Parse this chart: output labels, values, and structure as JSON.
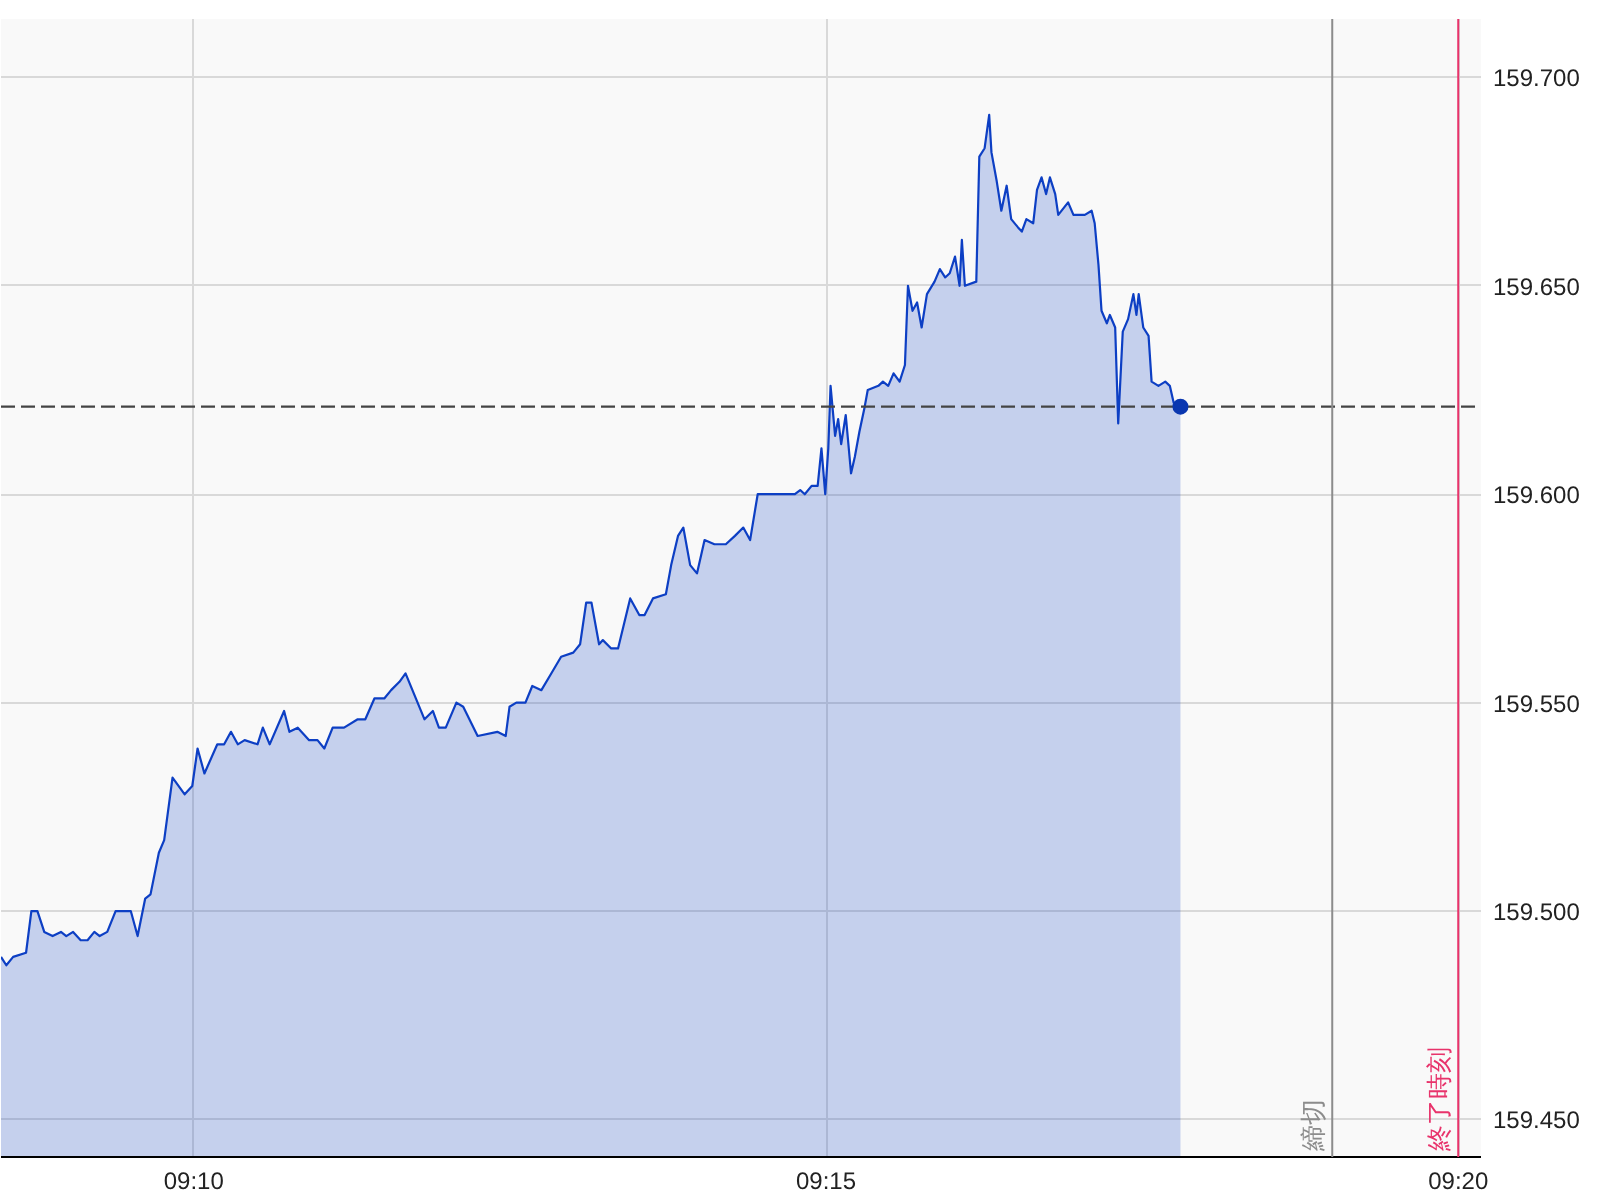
{
  "chart_data": {
    "type": "area",
    "x": [
      9.1413,
      9.142,
      9.1429,
      9.1446,
      9.1453,
      9.1461,
      9.147,
      9.1481,
      9.1492,
      9.1499,
      9.1508,
      9.1518,
      9.1527,
      9.1536,
      9.1543,
      9.1553,
      9.1564,
      9.1584,
      9.1593,
      9.1603,
      9.161,
      9.1621,
      9.1628,
      9.1639,
      9.1655,
      9.1665,
      9.1672,
      9.1681,
      9.1698,
      9.1707,
      9.1716,
      9.1725,
      9.1734,
      9.1751,
      9.1758,
      9.1767,
      9.1786,
      9.1793,
      9.1804,
      9.1819,
      9.183,
      9.1839,
      9.185,
      9.1865,
      9.1883,
      9.1893,
      9.1905,
      9.1918,
      9.1927,
      9.1938,
      9.1946,
      9.1971,
      9.1982,
      9.199,
      9.1999,
      9.2013,
      9.2022,
      9.2041,
      9.2067,
      9.2078,
      9.2083,
      9.2092,
      9.2104,
      9.2113,
      9.2125,
      9.2138,
      9.2151,
      9.2167,
      9.2176,
      9.2184,
      9.2191,
      9.2201,
      9.2206,
      9.2217,
      9.2226,
      9.2242,
      9.2254,
      9.2261,
      9.2272,
      9.2289,
      9.2296,
      9.2305,
      9.2312,
      9.2321,
      9.233,
      9.234,
      9.2353,
      9.2368,
      9.238,
      9.2391,
      9.24,
      9.241,
      9.2459,
      9.2466,
      9.2472,
      9.2481,
      9.2489,
      9.2494,
      9.2499,
      9.2503,
      9.2506,
      9.2512,
      9.2516,
      9.252,
      9.2526,
      9.2533,
      9.2538,
      9.2544,
      9.2551,
      9.2555,
      9.2569,
      9.2575,
      9.2582,
      9.2589,
      9.2597,
      9.2604,
      9.2608,
      9.2614,
      9.262,
      9.2626,
      9.2633,
      9.2643,
      9.265,
      9.2657,
      9.2663,
      9.267,
      9.2676,
      9.2679,
      9.2683,
      9.2698,
      9.2702,
      9.2709,
      9.2715,
      9.2718,
      9.2725,
      9.2731,
      9.2738,
      9.2744,
      9.2753,
      9.2758,
      9.2764,
      9.2773,
      9.2778,
      9.2784,
      9.279,
      9.2795,
      9.2802,
      9.2806,
      9.2819,
      9.2826,
      9.2841,
      9.285,
      9.2854,
      9.2859,
      9.2863,
      9.287,
      9.2874,
      9.2881,
      9.2885,
      9.2891,
      9.2898,
      9.2905,
      9.2909,
      9.2912,
      9.2918,
      9.2925,
      9.2929,
      9.2938,
      9.2947,
      9.2953,
      9.2958,
      9.2967
    ],
    "series": [
      {
        "color": "#0d3fc4",
        "values": [
          159.489,
          159.487,
          159.489,
          159.49,
          159.5,
          159.5,
          159.495,
          159.494,
          159.495,
          159.494,
          159.495,
          159.493,
          159.493,
          159.495,
          159.494,
          159.495,
          159.5,
          159.5,
          159.494,
          159.503,
          159.504,
          159.514,
          159.517,
          159.532,
          159.528,
          159.53,
          159.539,
          159.533,
          159.54,
          159.54,
          159.543,
          159.54,
          159.541,
          159.54,
          159.544,
          159.54,
          159.548,
          159.543,
          159.544,
          159.541,
          159.541,
          159.539,
          159.544,
          159.544,
          159.546,
          159.546,
          159.551,
          159.551,
          159.553,
          159.555,
          159.557,
          159.546,
          159.548,
          159.544,
          159.544,
          159.55,
          159.549,
          159.542,
          159.543,
          159.542,
          159.549,
          159.55,
          159.55,
          159.554,
          159.553,
          159.557,
          159.561,
          159.562,
          159.564,
          159.574,
          159.574,
          159.564,
          159.565,
          159.563,
          159.563,
          159.575,
          159.571,
          159.571,
          159.575,
          159.576,
          159.583,
          159.59,
          159.592,
          159.583,
          159.581,
          159.589,
          159.588,
          159.588,
          159.59,
          159.592,
          159.589,
          159.6,
          159.6,
          159.601,
          159.6,
          159.602,
          159.602,
          159.611,
          159.6,
          159.611,
          159.626,
          159.614,
          159.618,
          159.612,
          159.619,
          159.605,
          159.609,
          159.615,
          159.621,
          159.625,
          159.626,
          159.627,
          159.626,
          159.629,
          159.627,
          159.631,
          159.65,
          159.644,
          159.646,
          159.64,
          159.648,
          159.651,
          159.654,
          159.652,
          159.653,
          159.657,
          159.65,
          159.661,
          159.65,
          159.651,
          159.681,
          159.683,
          159.691,
          159.682,
          159.675,
          159.668,
          159.674,
          159.666,
          159.664,
          159.663,
          159.666,
          159.665,
          159.673,
          159.676,
          159.672,
          159.676,
          159.672,
          159.667,
          159.67,
          159.667,
          159.667,
          159.668,
          159.665,
          159.655,
          159.644,
          159.641,
          159.643,
          159.64,
          159.617,
          159.639,
          159.642,
          159.648,
          159.643,
          159.648,
          159.64,
          159.638,
          159.627,
          159.626,
          159.627,
          159.626,
          159.622,
          159.621
        ]
      },
      {
        "type": "scatter",
        "x": [
          9.2967
        ],
        "values": [
          159.621
        ],
        "color": "#0a37b0",
        "marker": "circle"
      }
    ],
    "xlim": [
      9.1413,
      9.3363
    ],
    "xticks": [
      {
        "value": 9.1667,
        "label": "09:10"
      },
      {
        "value": 9.25,
        "label": "09:15"
      },
      {
        "value": 9.3333,
        "label": "09:20"
      }
    ],
    "ylim": [
      159.441,
      159.714
    ],
    "yticks": [
      {
        "value": 159.45,
        "label": "159.450"
      },
      {
        "value": 159.5,
        "label": "159.500"
      },
      {
        "value": 159.55,
        "label": "159.550"
      },
      {
        "value": 159.6,
        "label": "159.600"
      },
      {
        "value": 159.65,
        "label": "159.650"
      },
      {
        "value": 159.7,
        "label": "159.700"
      }
    ],
    "grid": true,
    "ref_lines": [
      {
        "axis": "y",
        "value": 159.621,
        "color": "#444444",
        "line_style": "dashed"
      },
      {
        "axis": "x",
        "value": 9.3167,
        "label": "締切",
        "color": "#8c8c8c",
        "line_style": "solid"
      },
      {
        "axis": "x",
        "value": 9.3333,
        "label": "終了時刻",
        "color": "#e8336b",
        "line_style": "solid"
      }
    ]
  }
}
